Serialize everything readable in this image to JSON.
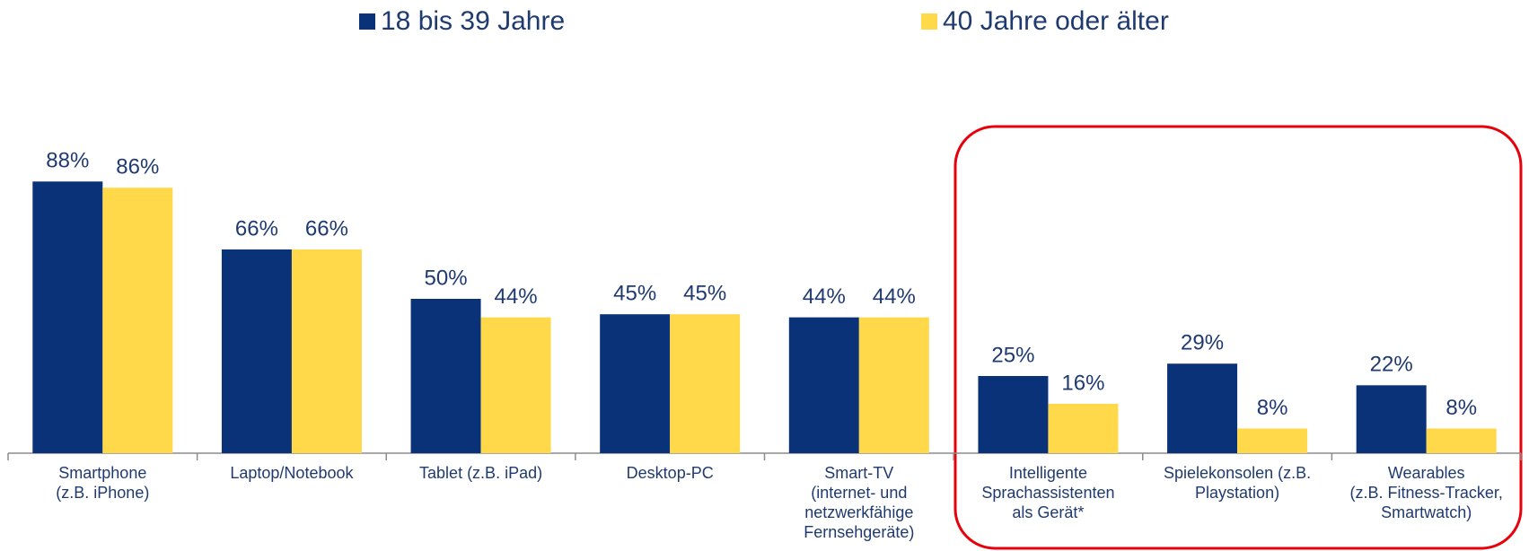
{
  "chart_data": {
    "type": "bar",
    "categories": [
      "Smartphone\n(z.B. iPhone)",
      "Laptop/Notebook",
      "Tablet (z.B. iPad)",
      "Desktop-PC",
      "Smart-TV\n(internet- und\nnetzwerkfähige\nFernsehgeräte)",
      "Intelligente\nSprachassistenten\nals Gerät*",
      "Spielekonsolen (z.B.\nPlaystation)",
      "Wearables\n(z.B. Fitness-Tracker,\nSmartwatch)"
    ],
    "series": [
      {
        "name": "18 bis 39 Jahre",
        "color": "#0a3278",
        "values": [
          88,
          66,
          50,
          45,
          44,
          25,
          29,
          22
        ],
        "value_labels": [
          "88%",
          "66%",
          "50%",
          "45%",
          "44%",
          "25%",
          "29%",
          "22%"
        ]
      },
      {
        "name": "40 Jahre oder älter",
        "color": "#ffd94a",
        "values": [
          86,
          66,
          44,
          45,
          44,
          16,
          8,
          8
        ],
        "value_labels": [
          "86%",
          "66%",
          "44%",
          "45%",
          "44%",
          "16%",
          "8%",
          "8%"
        ]
      }
    ],
    "ylim": [
      0,
      100
    ]
  }
}
